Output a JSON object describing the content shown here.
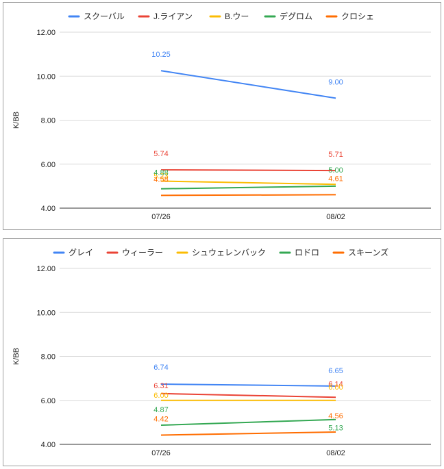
{
  "chart_data": [
    {
      "type": "line",
      "title": "",
      "xlabel": "",
      "ylabel": "K/BB",
      "ylim": [
        4,
        12
      ],
      "yticks": [
        "4.00",
        "6.00",
        "8.00",
        "10.00",
        "12.00"
      ],
      "categories": [
        "07/26",
        "08/02"
      ],
      "grid": true,
      "legend_position": "top",
      "series": [
        {
          "name": "スクーバル",
          "color": "#4285f4",
          "values": [
            10.25,
            9.0
          ],
          "labels": [
            "10.25",
            "9.00"
          ]
        },
        {
          "name": "J.ライアン",
          "color": "#ea4335",
          "values": [
            5.74,
            5.71
          ],
          "labels": [
            "5.74",
            "5.71"
          ]
        },
        {
          "name": "B.ウー",
          "color": "#fbbc04",
          "values": [
            5.23,
            5.08
          ],
          "labels": [
            "5.23",
            ""
          ]
        },
        {
          "name": "デグロム",
          "color": "#34a853",
          "values": [
            4.88,
            5.0
          ],
          "labels": [
            "4.88",
            "5.00"
          ]
        },
        {
          "name": "クロシェ",
          "color": "#ff6d01",
          "values": [
            4.58,
            4.61
          ],
          "labels": [
            "4.58",
            "4.61"
          ]
        }
      ]
    },
    {
      "type": "line",
      "title": "",
      "xlabel": "",
      "ylabel": "K/BB",
      "ylim": [
        4,
        12
      ],
      "yticks": [
        "4.00",
        "6.00",
        "8.00",
        "10.00",
        "12.00"
      ],
      "categories": [
        "07/26",
        "08/02"
      ],
      "grid": true,
      "legend_position": "top",
      "series": [
        {
          "name": "グレイ",
          "color": "#4285f4",
          "values": [
            6.74,
            6.65
          ],
          "labels": [
            "6.74",
            "6.65"
          ]
        },
        {
          "name": "ウィーラー",
          "color": "#ea4335",
          "values": [
            6.31,
            6.14
          ],
          "labels": [
            "6.31",
            "6.14"
          ]
        },
        {
          "name": "シュウェレンバック",
          "color": "#fbbc04",
          "values": [
            6.0,
            6.0
          ],
          "labels": [
            "6.00",
            "6.00"
          ]
        },
        {
          "name": "ロドロ",
          "color": "#34a853",
          "values": [
            4.87,
            5.13
          ],
          "labels": [
            "4.87",
            "5.13"
          ]
        },
        {
          "name": "スキーンズ",
          "color": "#ff6d01",
          "values": [
            4.42,
            4.56
          ],
          "labels": [
            "4.42",
            "4.56"
          ]
        }
      ]
    }
  ]
}
